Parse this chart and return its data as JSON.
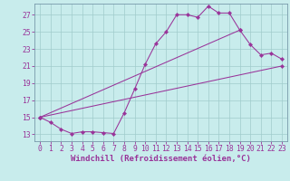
{
  "bg_color": "#c8ecec",
  "line_color": "#993399",
  "grid_color": "#a0cccc",
  "xlabel": "Windchill (Refroidissement éolien,°C)",
  "xlim": [
    -0.5,
    23.5
  ],
  "ylim": [
    12.2,
    28.3
  ],
  "xticks": [
    0,
    1,
    2,
    3,
    4,
    5,
    6,
    7,
    8,
    9,
    10,
    11,
    12,
    13,
    14,
    15,
    16,
    17,
    18,
    19,
    20,
    21,
    22,
    23
  ],
  "yticks": [
    13,
    15,
    17,
    19,
    21,
    23,
    25,
    27
  ],
  "curve_x": [
    0,
    1,
    2,
    3,
    4,
    5,
    6,
    7,
    8,
    9,
    10,
    11,
    12,
    13,
    14,
    15,
    16,
    17,
    18,
    19,
    20,
    21,
    22,
    23
  ],
  "curve_y": [
    15.0,
    14.4,
    13.6,
    13.1,
    13.3,
    13.3,
    13.2,
    13.1,
    15.5,
    18.3,
    21.2,
    23.6,
    25.0,
    27.0,
    27.0,
    26.7,
    28.0,
    27.2,
    27.2,
    25.2,
    23.5,
    22.3,
    22.5,
    21.8
  ],
  "line1_x": [
    0,
    19
  ],
  "line1_y": [
    15.0,
    25.2
  ],
  "line2_x": [
    0,
    23
  ],
  "line2_y": [
    15.0,
    21.0
  ],
  "xlabel_fontsize": 6.5,
  "tick_fontsize": 5.8
}
